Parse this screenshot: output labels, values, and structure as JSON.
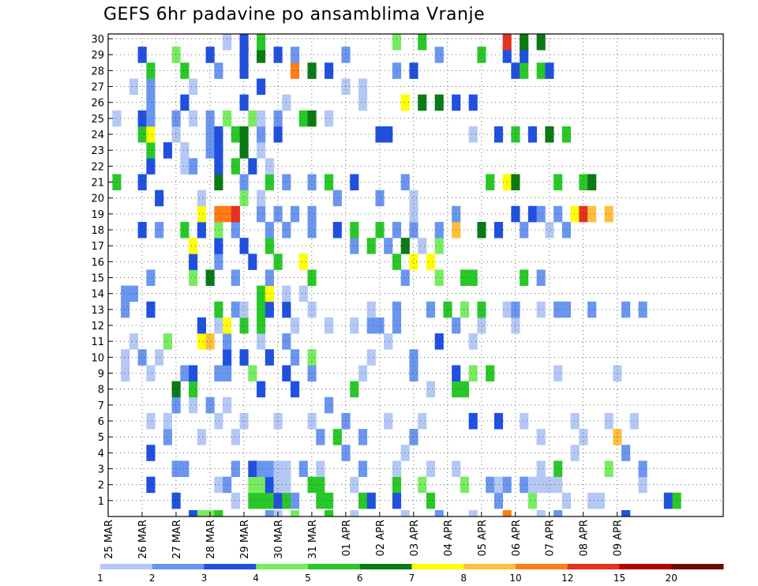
{
  "chart_data": {
    "type": "heatmap",
    "title": "GEFS 6hr padavine po ansamblima Vranje",
    "xlabel": "",
    "ylabel": "",
    "x_time_steps": 73,
    "x_step_hours": 6,
    "x_ticks": [
      {
        "label": "25 MAR",
        "step": 0
      },
      {
        "label": "26 MAR",
        "step": 4
      },
      {
        "label": "27 MAR",
        "step": 8
      },
      {
        "label": "28 MAR",
        "step": 12
      },
      {
        "label": "29 MAR",
        "step": 16
      },
      {
        "label": "30 MAR",
        "step": 20
      },
      {
        "label": "31 MAR",
        "step": 24
      },
      {
        "label": "01 APR",
        "step": 28
      },
      {
        "label": "02 APR",
        "step": 32
      },
      {
        "label": "03 APR",
        "step": 36
      },
      {
        "label": "04 APR",
        "step": 40
      },
      {
        "label": "05 APR",
        "step": 44
      },
      {
        "label": "06 APR",
        "step": 48
      },
      {
        "label": "07 APR",
        "step": 52
      },
      {
        "label": "08 APR",
        "step": 56
      },
      {
        "label": "09 APR",
        "step": 60
      }
    ],
    "y_ticks": [
      1,
      2,
      3,
      4,
      5,
      6,
      7,
      8,
      9,
      10,
      11,
      12,
      13,
      14,
      15,
      16,
      17,
      18,
      19,
      20,
      21,
      22,
      23,
      24,
      25,
      26,
      27,
      28,
      29,
      30
    ],
    "ylim": [
      0,
      30
    ],
    "grid": true,
    "legend": {
      "placement": "bottom",
      "labels": [
        "1",
        "2",
        "3",
        "4",
        "5",
        "6",
        "7",
        "8",
        "10",
        "12",
        "15",
        "20"
      ],
      "colors": [
        "#b4c8f5",
        "#6a96f0",
        "#2050e0",
        "#78ec60",
        "#28c828",
        "#0a7a14",
        "#ffff00",
        "#ffbe3c",
        "#ff7d14",
        "#e6321e",
        "#b40000",
        "#6e0a00"
      ]
    },
    "cell_colors": [
      "#b4c8f5",
      "#6a96f0",
      "#2050e0",
      "#78ec60",
      "#28c828",
      "#0a7a14",
      "#ffff00",
      "#ffbe3c",
      "#ff7d14",
      "#e6321e",
      "#b40000",
      "#6e0a00"
    ],
    "rows": {
      "0": "..........3445.....21.4...5..1.....1...2...1...9...1.2.......3.............",
      "1": "........3......1.555352..55...53..3...5.......2...4...1..11.......35.....",
      "2": ".....3.......12..44311..55...1....5..4....4..212.21111.........1.......",
      "3": "........22.....2.32211.2.1....2...1...1..1.........1.5.....4...2......",
      "4": ".....3......................2......1...................1.....2.....",
      "5": ".......2...1...1.........2.5..2.....2..............1....1...8....",
      "6": ".....1.1.....1..1...1...1...2....1...1.....3..3..1.....1...1..1",
      "7": "........2.1.2.1...........2.................................",
      "8": "........6.5.......3...3......5........1..55...................",
      "9": "..1..1...23..22..4...3..2.....1.....2....3.4.5.......1......1",
      "10": "..1.2.1.......3.3..3..2.4......1....2...........",
      "11": "...1...4...78.2...1..2...........1.....3...1.......",
      "12": "...........3.17.5.5...1...1..1.22.2......2..1...1.......",
      "13": "..2..3.......5.21.53.3..1......1..2...2.5.4.5..12..1.22..2...2.2",
      "14": "..22..............57.1.1..",
      "15": ".....2....4.6..2...2....5..........2...4..55.....5.2..",
      "16": "..........3..2...3..5..7..........5.7.7..........",
      "17": "..........7..3..3..5.........2.5.2.6.1.4..........",
      "18": "....3.2..5.3.4.2...2.2..2..3.5..5.2.2..2.8..6.3..2..1.2.",
      "19": "...........7.99a..2.2.2.2...........1....2......3.32.2.7a8.8...",
      "20": "......3....1....4.1........2....2...1.........................",
      "21": ".5..3........6..2..5.2..2.5..3.....2.........5.76....5..56..",
      "22": ".....3...12..3.5.3.1.......................",
      "23": ".....5.3.1..23..6.1.....................................",
      "24": "....57..1...23.56.2.3...........33.........1..3.5.3.6.5",
      "25": ".1..32..2.1.2.4..41.2..56.1................................",
      "26": ".....2...3......3....1........1....7.6.6.3.3.....",
      "27": "...1.2....1.......3.........1.1.......................",
      "28": ".....5...5...2..3.....9.6.3.......2.3...........35.53",
      "29": "....3...4...3...3.6.3.2.....2..........2....5..3.3..",
      "30": "..............1.3.5...............4..5.........a.6.6"
    },
    "note_rows_encoding": "row index = ensemble member (0 = bottom strip), each char = 6h step, '.' = no precipitation, digits 1-9 and 'a','b','c' = legend class index (1-based)"
  }
}
